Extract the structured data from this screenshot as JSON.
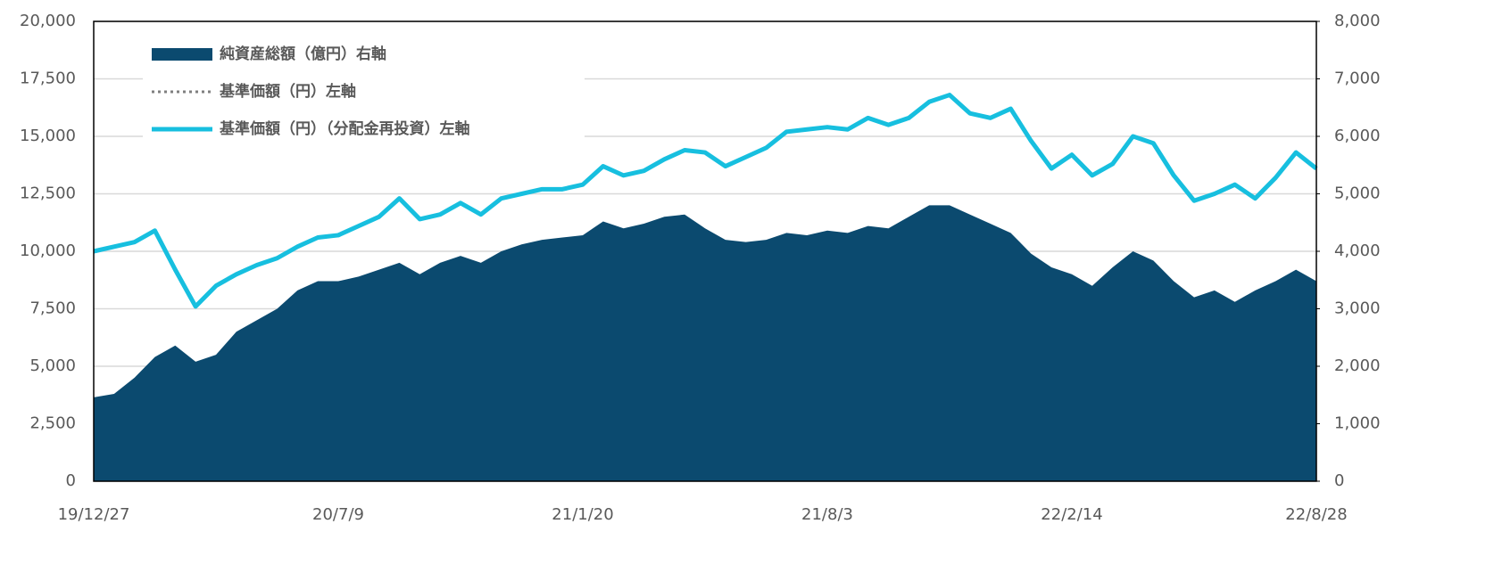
{
  "chart_data": {
    "type": "line",
    "categories": [
      "19/12/27",
      null,
      null,
      null,
      null,
      null,
      null,
      null,
      null,
      null,
      null,
      null,
      "20/7/9",
      null,
      null,
      null,
      null,
      null,
      null,
      null,
      null,
      null,
      null,
      null,
      "21/1/20",
      null,
      null,
      null,
      null,
      null,
      null,
      null,
      null,
      null,
      null,
      null,
      "21/8/3",
      null,
      null,
      null,
      null,
      null,
      null,
      null,
      null,
      null,
      null,
      null,
      "22/2/14",
      null,
      null,
      null,
      null,
      null,
      null,
      null,
      null,
      null,
      null,
      null,
      "22/8/28"
    ],
    "series": [
      {
        "name": "純資産総額（億円）右軸",
        "type": "area",
        "axis": "y2",
        "color": "#0b4a6f",
        "values": [
          1460,
          1520,
          1800,
          2160,
          2360,
          2080,
          2200,
          2600,
          2800,
          3000,
          3320,
          3480,
          3480,
          3560,
          3680,
          3800,
          3600,
          3800,
          3920,
          3800,
          4000,
          4120,
          4200,
          4240,
          4280,
          4520,
          4400,
          4480,
          4600,
          4640,
          4400,
          4200,
          4160,
          4200,
          4320,
          4280,
          4360,
          4320,
          4440,
          4400,
          4600,
          4800,
          4800,
          4640,
          4480,
          4320,
          3960,
          3720,
          3600,
          3400,
          3720,
          4000,
          3840,
          3480,
          3200,
          3320,
          3120,
          3320,
          3480,
          3680,
          3480
        ]
      },
      {
        "name": "基準価額（円）左軸",
        "type": "line",
        "dash": true,
        "color": "#7f7f7f",
        "values": [
          10000,
          10200,
          10400,
          10900,
          9200,
          7600,
          8500,
          9000,
          9400,
          9700,
          10200,
          10600,
          10700,
          11100,
          11500,
          12300,
          11400,
          11600,
          12100,
          11600,
          12300,
          12500,
          12700,
          12700,
          12900,
          13700,
          13300,
          13500,
          14000,
          14400,
          14300,
          13700,
          14100,
          14500,
          15200,
          15300,
          15400,
          15300,
          15800,
          15500,
          15800,
          16500,
          16800,
          16000,
          15800,
          16200,
          14800,
          13600,
          14200,
          13300,
          13800,
          15000,
          14700,
          13300,
          12200,
          12500,
          12900,
          12300,
          13200,
          14300,
          13600
        ]
      },
      {
        "name": "基準価額（円）（分配金再投資）左軸",
        "type": "line",
        "color": "#17bfdf",
        "values": [
          10000,
          10200,
          10400,
          10900,
          9200,
          7600,
          8500,
          9000,
          9400,
          9700,
          10200,
          10600,
          10700,
          11100,
          11500,
          12300,
          11400,
          11600,
          12100,
          11600,
          12300,
          12500,
          12700,
          12700,
          12900,
          13700,
          13300,
          13500,
          14000,
          14400,
          14300,
          13700,
          14100,
          14500,
          15200,
          15300,
          15400,
          15300,
          15800,
          15500,
          15800,
          16500,
          16800,
          16000,
          15800,
          16200,
          14800,
          13600,
          14200,
          13300,
          13800,
          15000,
          14700,
          13300,
          12200,
          12500,
          12900,
          12300,
          13200,
          14300,
          13600
        ]
      }
    ],
    "ylim": [
      0,
      20000
    ],
    "yticks": [
      0,
      {
        "value": 2500,
        "label": "2,500"
      },
      {
        "value": 5000,
        "label": "5,000"
      },
      {
        "value": 7500,
        "label": "7,500"
      },
      {
        "value": 10000,
        "label": "10,000"
      },
      {
        "value": 12500,
        "label": "12,500"
      },
      {
        "value": 15000,
        "label": "15,000"
      },
      {
        "value": 17500,
        "label": "17,500"
      },
      {
        "value": 20000,
        "label": "20,000"
      }
    ],
    "y2lim": [
      0,
      8000
    ],
    "y2ticks": [
      0,
      {
        "value": 1000,
        "label": "1,000"
      },
      {
        "value": 2000,
        "label": "2,000"
      },
      {
        "value": 3000,
        "label": "3,000"
      },
      {
        "value": 4000,
        "label": "4,000"
      },
      {
        "value": 5000,
        "label": "5,000"
      },
      {
        "value": 6000,
        "label": "6,000"
      },
      {
        "value": 7000,
        "label": "7,000"
      },
      {
        "value": 8000,
        "label": "8,000"
      }
    ],
    "grid": true,
    "legend": "upper left"
  }
}
